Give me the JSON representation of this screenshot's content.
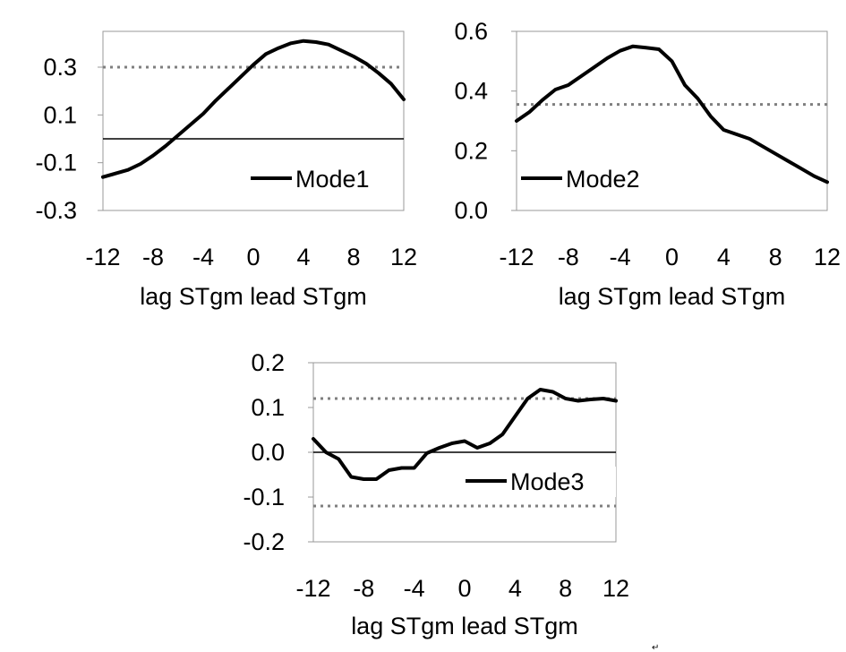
{
  "chart_data": [
    {
      "type": "line",
      "x": [
        -12,
        -11,
        -10,
        -9,
        -8,
        -7,
        -6,
        -5,
        -4,
        -3,
        -2,
        -1,
        0,
        1,
        2,
        3,
        4,
        5,
        6,
        7,
        8,
        9,
        10,
        11,
        12
      ],
      "series": [
        {
          "name": "Mode1",
          "values": [
            -0.16,
            -0.145,
            -0.13,
            -0.105,
            -0.07,
            -0.03,
            0.015,
            0.06,
            0.105,
            0.16,
            0.21,
            0.26,
            0.31,
            0.355,
            0.38,
            0.4,
            0.41,
            0.405,
            0.395,
            0.37,
            0.345,
            0.315,
            0.275,
            0.23,
            0.165
          ]
        }
      ],
      "ylim": [
        -0.3,
        0.45
      ],
      "yticks": [
        -0.3,
        -0.1,
        0.1,
        0.3
      ],
      "ytick_labels": [
        "-0.3",
        "-0.1",
        "0.1",
        "0.3"
      ],
      "xticks": [
        -12,
        -8,
        -4,
        0,
        4,
        8,
        12
      ],
      "xtick_labels": [
        "-12",
        "-8",
        "-4",
        "0",
        "4",
        "8",
        "12"
      ],
      "xlabel": "lag  STgm       lead  STgm",
      "reference_lines": {
        "significance": [
          0.3
        ],
        "zero": true
      },
      "legend_position": "bottom-right",
      "grid": false
    },
    {
      "type": "line",
      "x": [
        -12,
        -11,
        -10,
        -9,
        -8,
        -7,
        -6,
        -5,
        -4,
        -3,
        -2,
        -1,
        0,
        1,
        2,
        3,
        4,
        5,
        6,
        7,
        8,
        9,
        10,
        11,
        12
      ],
      "series": [
        {
          "name": "Mode2",
          "values": [
            0.3,
            0.33,
            0.37,
            0.405,
            0.42,
            0.45,
            0.48,
            0.51,
            0.535,
            0.55,
            0.545,
            0.54,
            0.5,
            0.42,
            0.375,
            0.315,
            0.27,
            0.255,
            0.24,
            0.215,
            0.19,
            0.165,
            0.14,
            0.115,
            0.095
          ]
        }
      ],
      "ylim": [
        0.0,
        0.6
      ],
      "yticks": [
        0.0,
        0.2,
        0.4,
        0.6
      ],
      "ytick_labels": [
        "0.0",
        "0.2",
        "0.4",
        "0.6"
      ],
      "xticks": [
        -12,
        -8,
        -4,
        0,
        4,
        8,
        12
      ],
      "xtick_labels": [
        "-12",
        "-8",
        "-4",
        "0",
        "4",
        "8",
        "12"
      ],
      "xlabel": "lag  STgm       lead  STgm",
      "reference_lines": {
        "significance": [
          0.355
        ],
        "zero": false
      },
      "legend_position": "bottom-right",
      "grid": false
    },
    {
      "type": "line",
      "x": [
        -12,
        -11,
        -10,
        -9,
        -8,
        -7,
        -6,
        -5,
        -4,
        -3,
        -2,
        -1,
        0,
        1,
        2,
        3,
        4,
        5,
        6,
        7,
        8,
        9,
        10,
        11,
        12
      ],
      "series": [
        {
          "name": "Mode3",
          "values": [
            0.03,
            0.0,
            -0.015,
            -0.055,
            -0.06,
            -0.06,
            -0.04,
            -0.035,
            -0.035,
            -0.002,
            0.01,
            0.02,
            0.025,
            0.01,
            0.02,
            0.04,
            0.08,
            0.12,
            0.14,
            0.135,
            0.12,
            0.115,
            0.118,
            0.12,
            0.115
          ]
        }
      ],
      "ylim": [
        -0.2,
        0.2
      ],
      "yticks": [
        -0.2,
        -0.1,
        0.0,
        0.1,
        0.2
      ],
      "ytick_labels": [
        "-0.2",
        "-0.1",
        "0.0",
        "0.1",
        "0.2"
      ],
      "xticks": [
        -12,
        -8,
        -4,
        0,
        4,
        8,
        12
      ],
      "xtick_labels": [
        "-12",
        "-8",
        "-4",
        "0",
        "4",
        "8",
        "12"
      ],
      "xlabel": "lag  STgm    lead  STgm",
      "reference_lines": {
        "significance": [
          0.12,
          -0.12
        ],
        "zero": true
      },
      "legend_position": "center-right",
      "grid": false
    }
  ],
  "colors": {
    "line": "#000000",
    "significance": "#7f7f7f",
    "axis": "#999999",
    "zero_line": "#000000"
  },
  "corner_mark": "↵"
}
